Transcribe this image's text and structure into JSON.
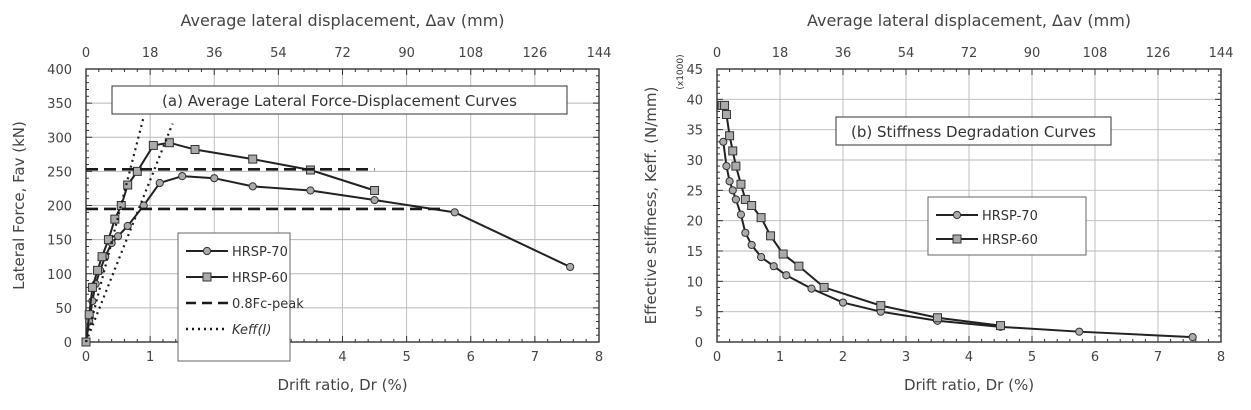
{
  "chart_data": [
    {
      "type": "line",
      "panel": "a",
      "title": "(a) Average Lateral Force-Displacement Curves",
      "xlabel": "Drift ratio, Dr (%)",
      "ylabel": "Lateral Force, Fav (kN)",
      "x2label": "Average lateral displacement, Δav (mm)",
      "xlim": [
        0,
        8
      ],
      "ylim": [
        0,
        400
      ],
      "x2lim": [
        0,
        144
      ],
      "xticks": [
        "0",
        "1",
        "2",
        "3",
        "4",
        "5",
        "6",
        "7",
        "8"
      ],
      "yticks": [
        "0",
        "50",
        "100",
        "150",
        "200",
        "250",
        "300",
        "350",
        "400"
      ],
      "x2ticks": [
        "0",
        "18",
        "36",
        "54",
        "72",
        "90",
        "108",
        "126",
        "144"
      ],
      "grid": true,
      "legend_position": "bottom-center",
      "series": [
        {
          "name": "HRSP-70",
          "marker": "circle",
          "x": [
            0,
            0.05,
            0.1,
            0.15,
            0.22,
            0.3,
            0.4,
            0.5,
            0.65,
            0.9,
            1.15,
            1.5,
            2.0,
            2.6,
            3.5,
            4.5,
            5.75,
            7.55
          ],
          "y": [
            0,
            30,
            60,
            85,
            105,
            125,
            145,
            155,
            170,
            200,
            233,
            243,
            240,
            228,
            222,
            208,
            190,
            110
          ]
        },
        {
          "name": "HRSP-60",
          "marker": "square",
          "x": [
            0,
            0.05,
            0.1,
            0.18,
            0.25,
            0.35,
            0.45,
            0.55,
            0.65,
            0.8,
            1.05,
            1.3,
            1.7,
            2.6,
            3.5,
            4.5
          ],
          "y": [
            0,
            40,
            80,
            105,
            125,
            150,
            180,
            200,
            230,
            250,
            288,
            292,
            282,
            268,
            252,
            222
          ]
        },
        {
          "name": "0.8Fc-peak",
          "style": "dashed",
          "segments": [
            {
              "x": [
                0,
                4.5
              ],
              "y": [
                253,
                253
              ]
            },
            {
              "x": [
                0,
                5.6
              ],
              "y": [
                195,
                195
              ]
            }
          ]
        },
        {
          "name": "Keff(I)",
          "style": "dotted",
          "segments": [
            {
              "x": [
                0,
                0.9
              ],
              "y": [
                0,
                330
              ]
            },
            {
              "x": [
                0,
                1.35
              ],
              "y": [
                0,
                320
              ]
            }
          ]
        }
      ]
    },
    {
      "type": "line",
      "panel": "b",
      "title": "(b) Stiffness Degradation Curves",
      "xlabel": "Drift ratio, Dr (%)",
      "ylabel": "Effective stiffness, Keff. (N/mm)",
      "ylabel_unit": "(x1000)",
      "x2label": "Average  lateral displacement, Δav (mm)",
      "xlim": [
        0,
        8
      ],
      "ylim": [
        0,
        45
      ],
      "x2lim": [
        0,
        144
      ],
      "xticks": [
        "0",
        "1",
        "2",
        "3",
        "4",
        "5",
        "6",
        "7",
        "8"
      ],
      "yticks": [
        "0",
        "5",
        "10",
        "15",
        "20",
        "25",
        "30",
        "35",
        "40",
        "45"
      ],
      "x2ticks": [
        "0",
        "18",
        "36",
        "54",
        "72",
        "90",
        "108",
        "126",
        "144"
      ],
      "grid": true,
      "legend_position": "center-right",
      "series": [
        {
          "name": "HRSP-70",
          "marker": "circle",
          "x": [
            0.1,
            0.15,
            0.2,
            0.25,
            0.3,
            0.38,
            0.45,
            0.55,
            0.7,
            0.9,
            1.1,
            1.5,
            2.0,
            2.6,
            3.5,
            4.5,
            5.75,
            7.55
          ],
          "y": [
            33,
            29,
            26.5,
            25,
            23.5,
            21,
            18,
            16,
            14,
            12.5,
            11,
            8.8,
            6.5,
            5,
            3.5,
            2.5,
            1.7,
            0.8
          ]
        },
        {
          "name": "HRSP-60",
          "marker": "square",
          "x": [
            0.08,
            0.12,
            0.15,
            0.2,
            0.25,
            0.3,
            0.38,
            0.45,
            0.55,
            0.7,
            0.85,
            1.05,
            1.3,
            1.7,
            2.6,
            3.5,
            4.5
          ],
          "y": [
            39,
            39,
            37.5,
            34,
            31.5,
            29,
            26,
            23.5,
            22.5,
            20.5,
            17.5,
            14.5,
            12.5,
            9,
            6,
            4,
            2.7
          ]
        }
      ]
    }
  ]
}
